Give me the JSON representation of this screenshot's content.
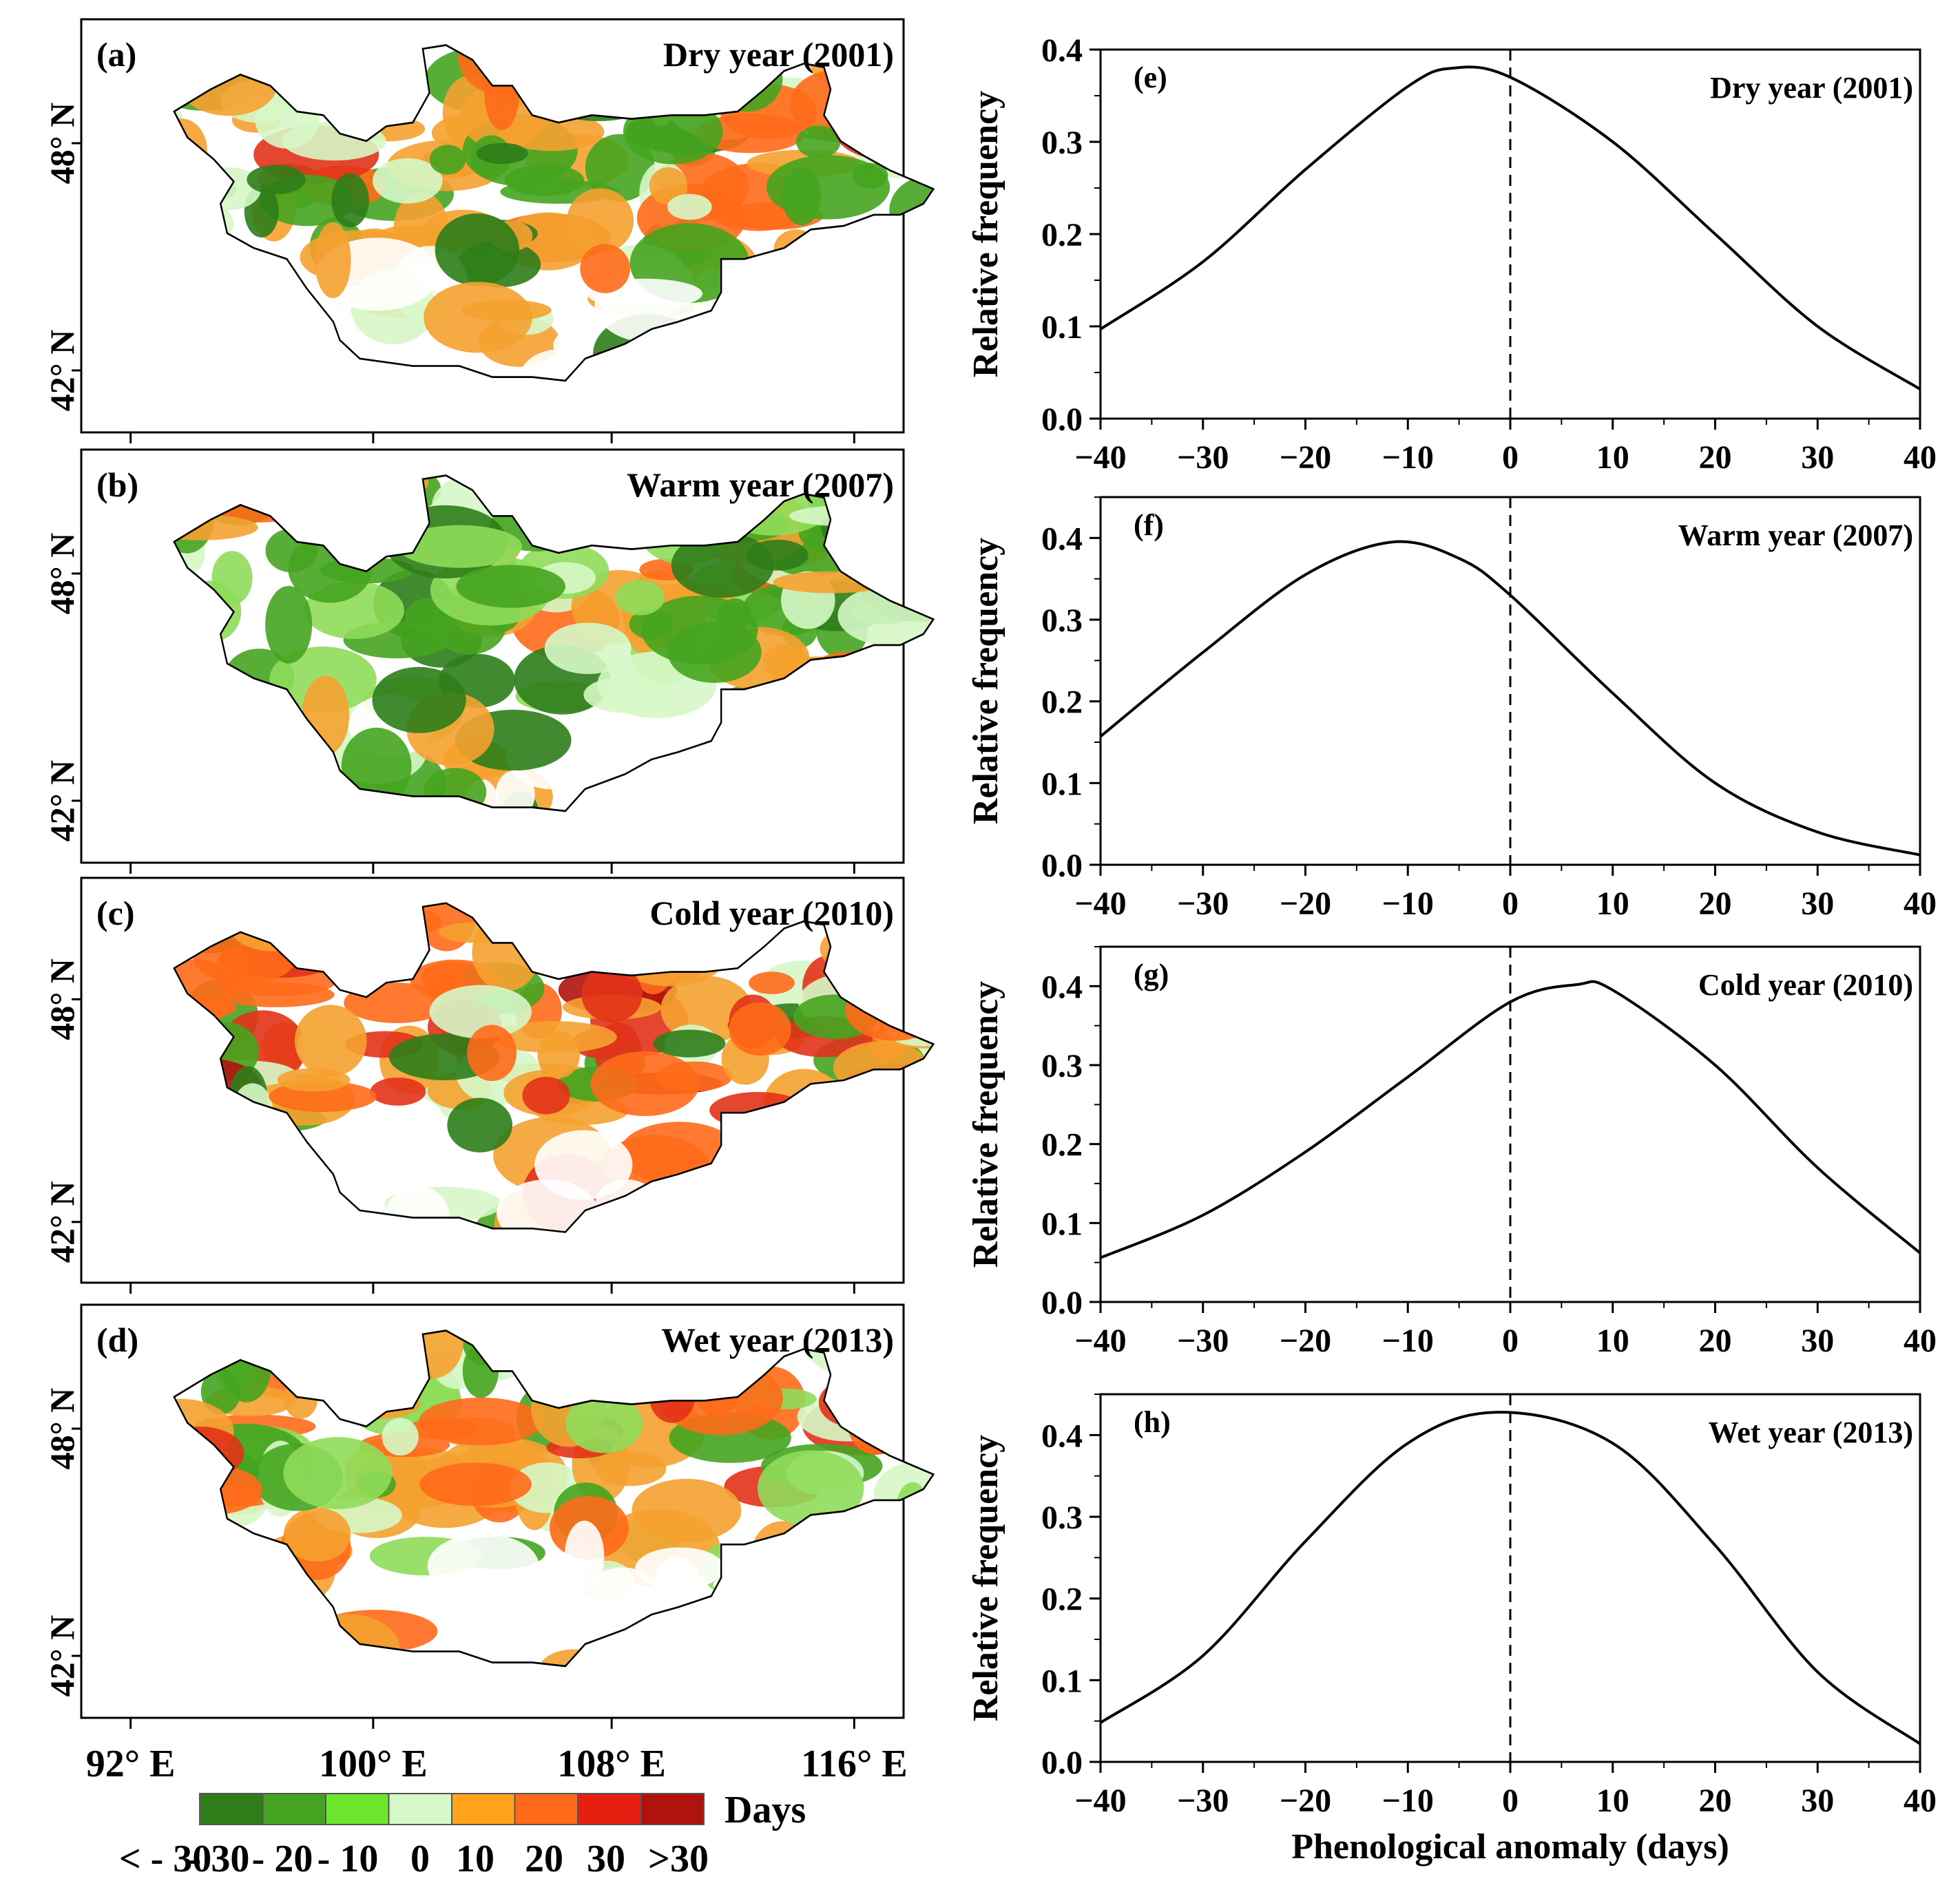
{
  "maps": {
    "lat_labels": [
      "48° N",
      "42° N"
    ],
    "lon_labels": [
      "92° E",
      "100° E",
      "108° E",
      "116° E"
    ],
    "panels": [
      {
        "tag": "(a)",
        "title": "Dry year (2001)"
      },
      {
        "tag": "(b)",
        "title": "Warm year (2007)"
      },
      {
        "tag": "(c)",
        "title": "Cold year (2010)"
      },
      {
        "tag": "(d)",
        "title": "Wet year  (2013)"
      }
    ],
    "legend": {
      "title": "Days",
      "ticks": [
        "< - 30",
        "- 30",
        "- 20",
        "- 10",
        "0",
        "10",
        "20",
        "30",
        ">30"
      ],
      "colors": [
        "#2e7d1a",
        "#45a41f",
        "#6ee62d",
        "#d6f7c6",
        "#ffa31a",
        "#ff6a1a",
        "#e61e10",
        "#b0130d"
      ]
    },
    "colors": {
      "dark_green": "#2e7d1a",
      "green": "#45a41f",
      "light_green": "#8fdc5a",
      "pale_green": "#d6f7c6",
      "orange": "#f5a130",
      "dark_orange": "#ff6a1a",
      "red": "#e2321a",
      "dark_red": "#b0130d"
    }
  },
  "chart_data": [
    {
      "type": "line",
      "tag": "(e)",
      "title": "Dry year (2001)",
      "xlabel": "",
      "ylabel": "Relative frequency",
      "xlim": [
        -40,
        40
      ],
      "ylim": [
        0,
        0.4
      ],
      "yticks": [
        "0.0",
        "0.1",
        "0.2",
        "0.3",
        "0.4"
      ],
      "xticks": [
        "-40",
        "-30",
        "-20",
        "-10",
        "0",
        "10",
        "20",
        "30",
        "40"
      ],
      "x": [
        -40,
        -30,
        -20,
        -10,
        -5.5,
        0,
        10,
        20,
        30,
        40
      ],
      "y": [
        0.097,
        0.17,
        0.27,
        0.36,
        0.38,
        0.37,
        0.3,
        0.2,
        0.1,
        0.032
      ]
    },
    {
      "type": "line",
      "tag": "(f)",
      "title": "Warm year (2007)",
      "xlabel": "",
      "ylabel": "Relative frequency",
      "xlim": [
        -40,
        40
      ],
      "ylim": [
        0,
        0.45
      ],
      "yticks": [
        "0.0",
        "0.1",
        "0.2",
        "0.3",
        "0.4"
      ],
      "xticks": [
        "-40",
        "-30",
        "-20",
        "-10",
        "0",
        "10",
        "20",
        "30",
        "40"
      ],
      "x": [
        -40,
        -30,
        -20,
        -11.5,
        -5,
        0,
        10,
        20,
        30,
        40
      ],
      "y": [
        0.157,
        0.26,
        0.355,
        0.395,
        0.375,
        0.33,
        0.21,
        0.1,
        0.04,
        0.012
      ]
    },
    {
      "type": "line",
      "tag": "(g)",
      "title": "Cold year (2010)",
      "xlabel": "",
      "ylabel": "Relative frequency",
      "xlim": [
        -40,
        40
      ],
      "ylim": [
        0,
        0.45
      ],
      "yticks": [
        "0.0",
        "0.1",
        "0.2",
        "0.3",
        "0.4"
      ],
      "xticks": [
        "-40",
        "-30",
        "-20",
        "-10",
        "0",
        "10",
        "20",
        "30",
        "40"
      ],
      "x": [
        -40,
        -30,
        -20,
        -10,
        0,
        6.5,
        10,
        20,
        30,
        40
      ],
      "y": [
        0.056,
        0.11,
        0.19,
        0.285,
        0.38,
        0.402,
        0.395,
        0.3,
        0.17,
        0.062
      ]
    },
    {
      "type": "line",
      "tag": "(h)",
      "title": "Wet year (2013)",
      "xlabel": "Phenological anomaly (days)",
      "ylabel": "Relative frequency",
      "xlim": [
        -40,
        40
      ],
      "ylim": [
        0,
        0.45
      ],
      "yticks": [
        "0.0",
        "0.1",
        "0.2",
        "0.3",
        "0.4"
      ],
      "xticks": [
        "-40",
        "-30",
        "-20",
        "-10",
        "0",
        "10",
        "20",
        "30",
        "40"
      ],
      "x": [
        -40,
        -30,
        -20,
        -10,
        -1,
        10,
        20,
        30,
        40
      ],
      "y": [
        0.048,
        0.13,
        0.27,
        0.39,
        0.428,
        0.39,
        0.265,
        0.11,
        0.022
      ]
    }
  ]
}
